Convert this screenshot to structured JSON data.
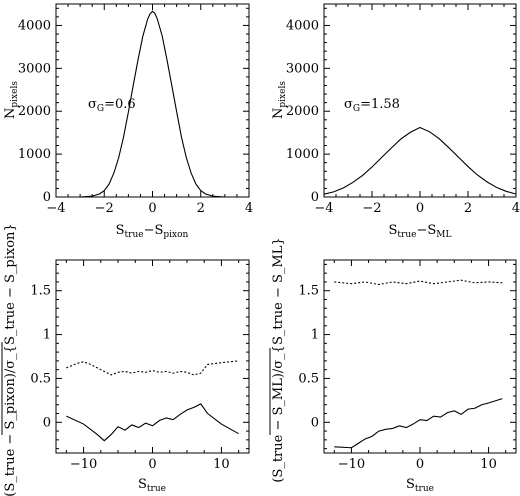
{
  "chart_data": [
    {
      "type": "line",
      "panel": "top-left",
      "annotation": {
        "text": "σ_G=0.6",
        "symbol": "σ",
        "sub": "G",
        "value": "=0.6"
      },
      "xlabel": {
        "main": "S",
        "sub1": "true",
        "mid": "−S",
        "sub2": "pixon"
      },
      "ylabel": {
        "main": "N",
        "sub": "pixels"
      },
      "xlim": [
        -4,
        4
      ],
      "ylim": [
        0,
        4500
      ],
      "xticks": [
        -4,
        -2,
        0,
        2,
        4
      ],
      "yticks": [
        0,
        1000,
        2000,
        3000,
        4000
      ],
      "series": [
        {
          "style": "solid-step",
          "x": [
            -4,
            -3,
            -2.5,
            -2.2,
            -2.0,
            -1.8,
            -1.6,
            -1.4,
            -1.2,
            -1.0,
            -0.8,
            -0.6,
            -0.4,
            -0.2,
            -0.1,
            0.0,
            0.1,
            0.2,
            0.4,
            0.6,
            0.8,
            1.0,
            1.2,
            1.4,
            1.6,
            1.8,
            2.0,
            2.2,
            2.5,
            3,
            4
          ],
          "y": [
            0,
            0,
            20,
            70,
            150,
            300,
            560,
            920,
            1400,
            1980,
            2600,
            3200,
            3750,
            4150,
            4270,
            4330,
            4280,
            4150,
            3760,
            3200,
            2600,
            1990,
            1400,
            920,
            560,
            300,
            150,
            70,
            20,
            0,
            0
          ]
        }
      ]
    },
    {
      "type": "line",
      "panel": "top-right",
      "annotation": {
        "text": "σ_G=1.58",
        "symbol": "σ",
        "sub": "G",
        "value": "=1.58"
      },
      "xlabel": {
        "main": "S",
        "sub1": "true",
        "mid": "−S",
        "sub2": "ML"
      },
      "ylabel": {
        "main": "N",
        "sub": "pixels"
      },
      "xlim": [
        -4,
        4
      ],
      "ylim": [
        0,
        4500
      ],
      "xticks": [
        -4,
        -2,
        0,
        2,
        4
      ],
      "yticks": [
        0,
        1000,
        2000,
        3000,
        4000
      ],
      "series": [
        {
          "style": "solid-step",
          "x": [
            -4.0,
            -3.6,
            -3.2,
            -2.8,
            -2.4,
            -2.0,
            -1.6,
            -1.2,
            -0.8,
            -0.4,
            0.0,
            0.4,
            0.8,
            1.2,
            1.6,
            2.0,
            2.4,
            2.8,
            3.2,
            3.6,
            4.0
          ],
          "y": [
            65,
            120,
            210,
            340,
            500,
            700,
            920,
            1140,
            1350,
            1510,
            1620,
            1520,
            1360,
            1150,
            930,
            710,
            510,
            350,
            220,
            130,
            70
          ]
        }
      ]
    },
    {
      "type": "line",
      "panel": "bottom-left",
      "xlabel": {
        "main": "S",
        "sub1": "true"
      },
      "ylabel": {
        "text": "(S_true − S_pixon)/σ_{S_true − S_pixon}"
      },
      "xlim": [
        -14,
        14
      ],
      "ylim": [
        -0.35,
        1.85
      ],
      "xticks": [
        -10,
        0,
        10
      ],
      "yticks": [
        0,
        0.5,
        1,
        1.5
      ],
      "series": [
        {
          "style": "solid",
          "x": [
            -12.5,
            -10,
            -8,
            -7,
            -6,
            -5,
            -4,
            -3,
            -2,
            -1,
            0,
            1,
            2,
            3,
            4,
            5,
            6,
            7,
            8,
            10,
            12.5
          ],
          "y": [
            0.07,
            -0.02,
            -0.14,
            -0.21,
            -0.14,
            -0.05,
            -0.09,
            -0.03,
            -0.06,
            -0.01,
            -0.04,
            0.02,
            0.05,
            0.03,
            0.09,
            0.14,
            0.17,
            0.21,
            0.1,
            -0.02,
            -0.13
          ]
        },
        {
          "style": "dotted",
          "x": [
            -12.5,
            -11,
            -10,
            -9,
            -8,
            -7,
            -6,
            -5,
            -4,
            -3,
            -2,
            -1,
            0,
            1,
            2,
            3,
            4,
            5,
            6,
            7,
            8,
            10,
            12.5
          ],
          "y": [
            0.62,
            0.67,
            0.69,
            0.66,
            0.62,
            0.58,
            0.54,
            0.57,
            0.58,
            0.56,
            0.58,
            0.57,
            0.59,
            0.57,
            0.58,
            0.56,
            0.58,
            0.57,
            0.54,
            0.56,
            0.66,
            0.68,
            0.7
          ]
        }
      ]
    },
    {
      "type": "line",
      "panel": "bottom-right",
      "xlabel": {
        "main": "S",
        "sub1": "true"
      },
      "ylabel": {
        "text": "(S_true − S_ML)/σ_{S_true − S_ML}"
      },
      "xlim": [
        -14,
        14
      ],
      "ylim": [
        -0.35,
        1.85
      ],
      "xticks": [
        -10,
        0,
        10
      ],
      "yticks": [
        0,
        0.5,
        1,
        1.5
      ],
      "series": [
        {
          "style": "solid",
          "x": [
            -12.5,
            -10,
            -9,
            -8,
            -7,
            -6,
            -5,
            -4,
            -3,
            -2,
            -1,
            0,
            1,
            2,
            3,
            4,
            5,
            6,
            7,
            8,
            9,
            10,
            12
          ],
          "y": [
            -0.28,
            -0.29,
            -0.24,
            -0.19,
            -0.16,
            -0.1,
            -0.08,
            -0.07,
            -0.04,
            -0.06,
            -0.02,
            0.03,
            0.02,
            0.07,
            0.06,
            0.11,
            0.13,
            0.09,
            0.15,
            0.16,
            0.2,
            0.22,
            0.27
          ]
        },
        {
          "style": "dotted",
          "x": [
            -12.5,
            -10,
            -8,
            -6,
            -4,
            -2,
            0,
            2,
            4,
            6,
            8,
            10,
            12
          ],
          "y": [
            1.6,
            1.58,
            1.6,
            1.57,
            1.6,
            1.58,
            1.61,
            1.58,
            1.6,
            1.62,
            1.59,
            1.6,
            1.59
          ]
        }
      ]
    }
  ]
}
